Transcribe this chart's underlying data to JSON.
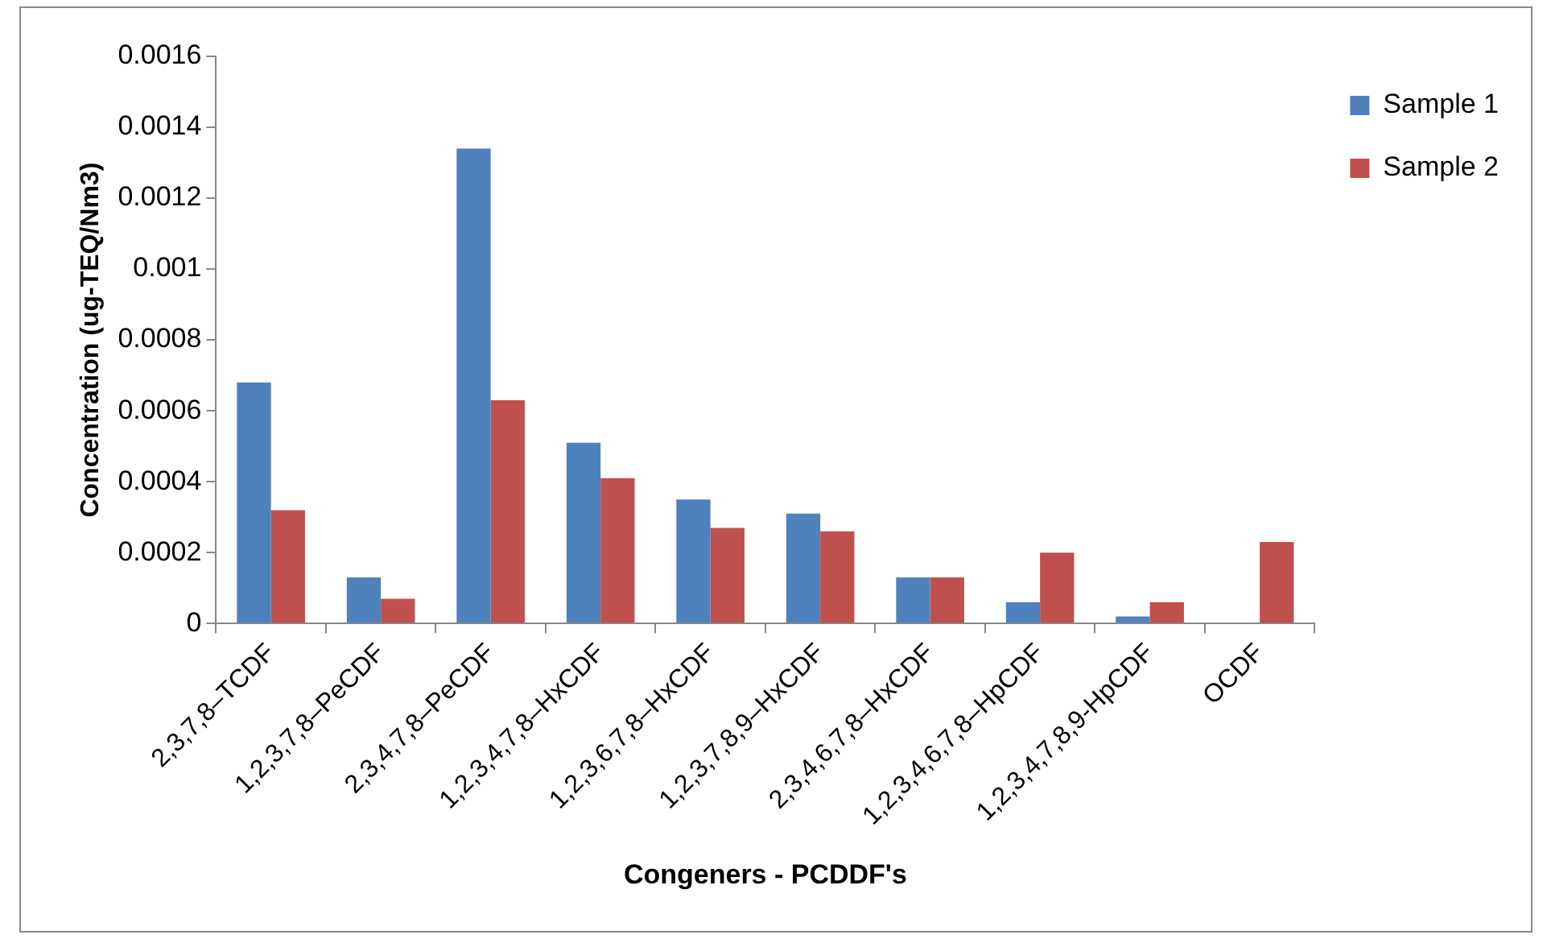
{
  "chart_data": {
    "type": "bar",
    "xlabel": "Congeners - PCDDF's",
    "ylabel": "Concentration (ug-TEQ/Nm3)",
    "categories": [
      "2,3,7,8–TCDF",
      "1,2,3,7,8–PeCDF",
      "2,3,4,7,8–PeCDF",
      "1,2,3,4,7,8–HxCDF",
      "1,2,3,6,7,8–HxCDF",
      "1,2,3,7,8,9–HxCDF",
      "2,3,4,6,7,8–HxCDF",
      "1,2,3,4,6,7,8–HpCDF",
      "1,2,3,4,7,8,9-HpCDF",
      "OCDF"
    ],
    "series": [
      {
        "name": "Sample 1",
        "color": "#4f81bd",
        "values": [
          0.00068,
          0.00013,
          0.00134,
          0.00051,
          0.00035,
          0.00031,
          0.00013,
          6e-05,
          2e-05,
          0
        ]
      },
      {
        "name": "Sample 2",
        "color": "#c0504d",
        "values": [
          0.00032,
          7e-05,
          0.00063,
          0.00041,
          0.00027,
          0.00026,
          0.00013,
          0.0002,
          6e-05,
          0.00023
        ]
      }
    ],
    "ylim": [
      0,
      0.0016
    ],
    "yticks": [
      0,
      0.0002,
      0.0004,
      0.0006,
      0.0008,
      0.001,
      0.0012,
      0.0014,
      0.0016
    ],
    "grid": false,
    "legend": "right"
  }
}
